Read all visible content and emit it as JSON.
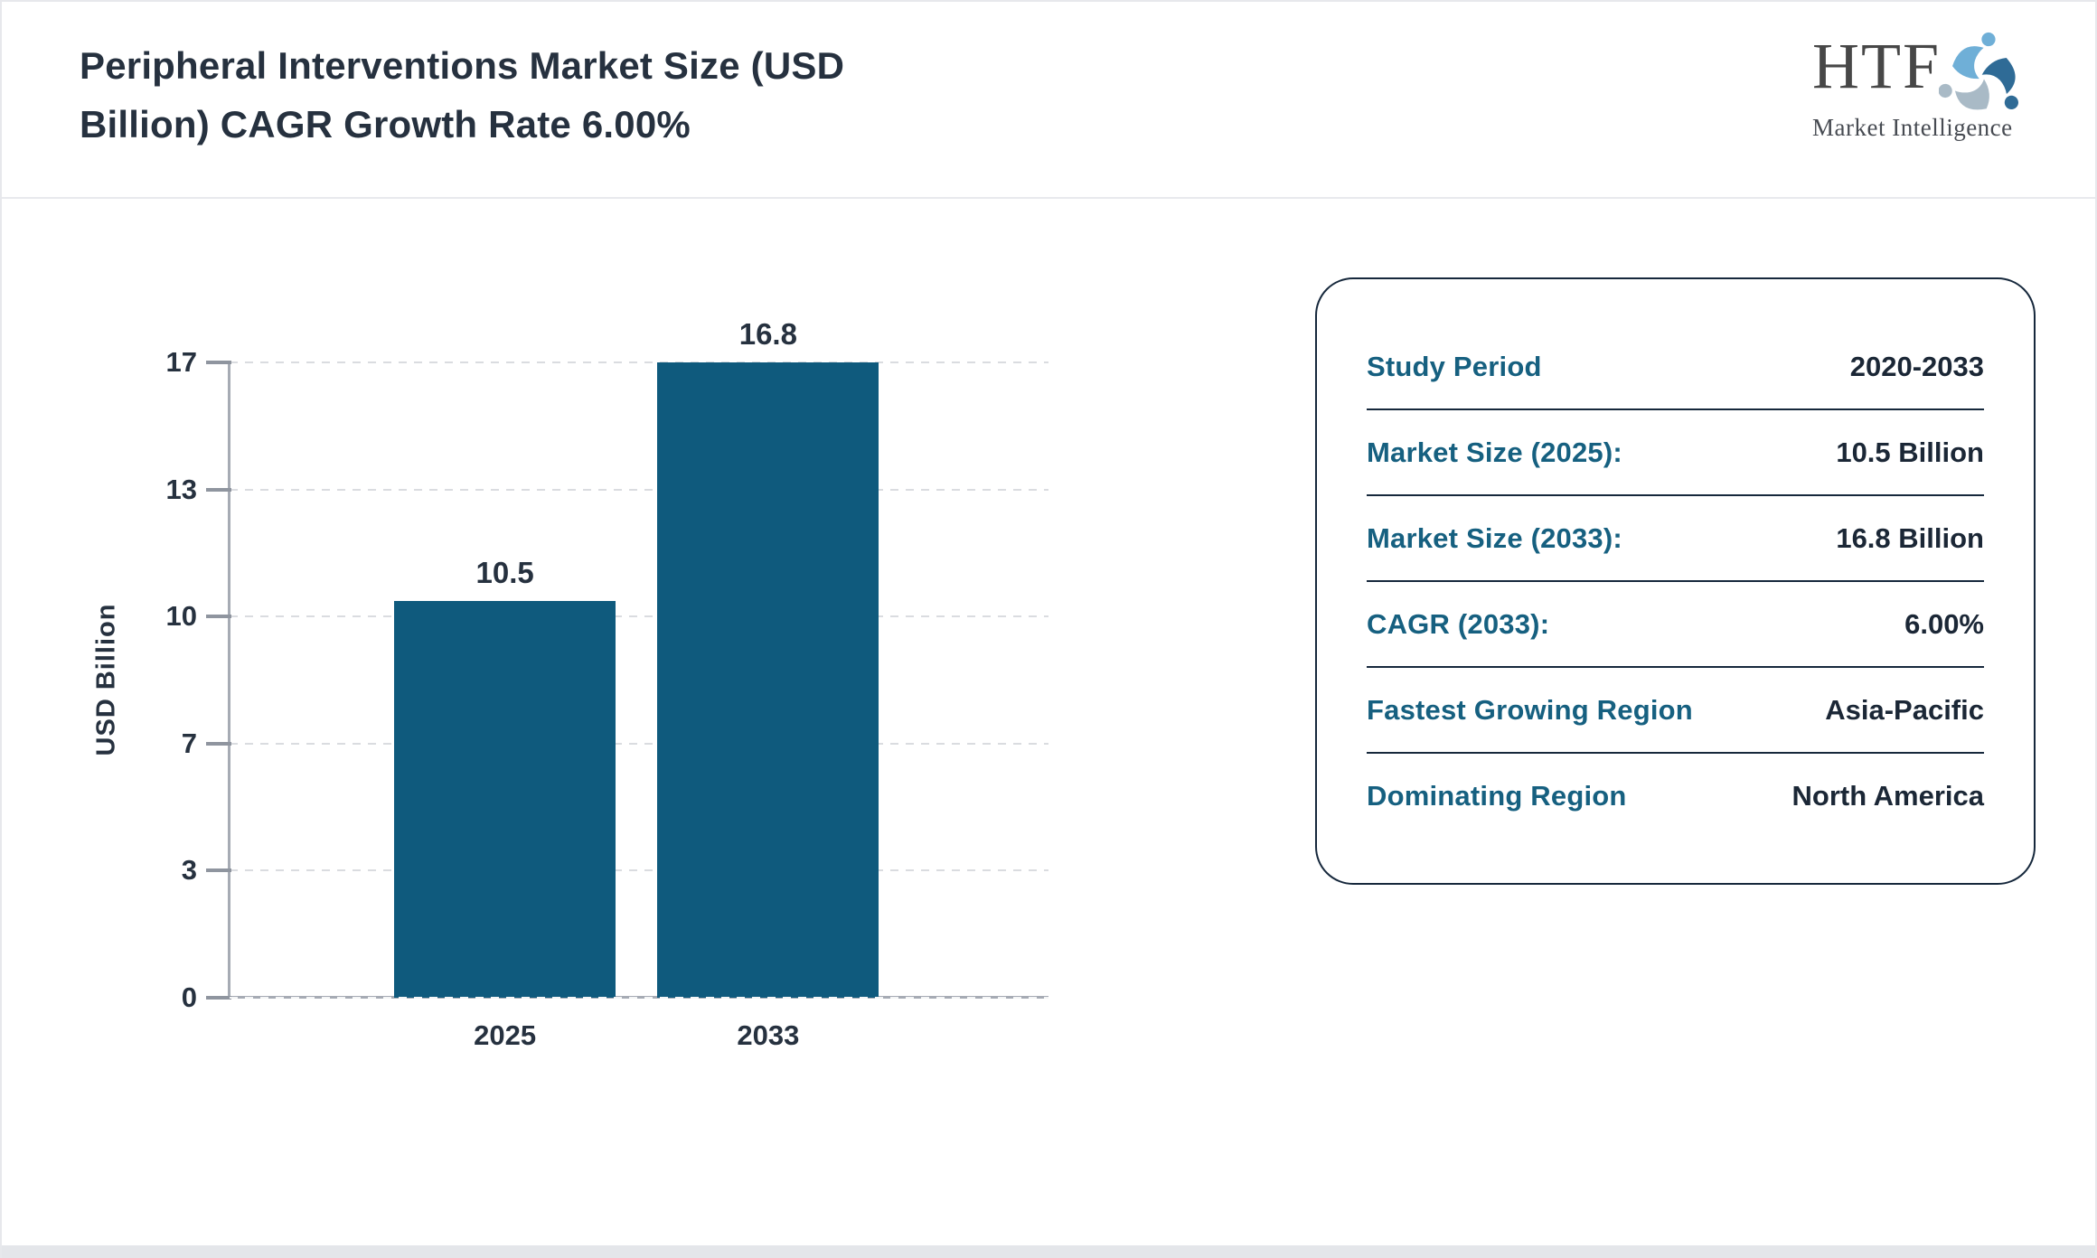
{
  "header": {
    "title_line1": "Peripheral Interventions Market Size (USD",
    "title_line2": "Billion) CAGR Growth Rate 6.00%"
  },
  "logo": {
    "monogram": "HTF",
    "subtitle": "Market Intelligence",
    "swirl_icon_colors": [
      "#6fafd7",
      "#2f6b96",
      "#a9bac6"
    ]
  },
  "chart_data": {
    "type": "bar",
    "title": "Peripheral Interventions Market Size (USD Billion) CAGR Growth Rate 6.00%",
    "categories": [
      "2025",
      "2033"
    ],
    "values": [
      10.5,
      16.8
    ],
    "value_labels": [
      "10.5",
      "16.8"
    ],
    "xlabel": "",
    "ylabel": "USD Billion",
    "ylim": [
      0,
      16.8
    ],
    "ytick_labels": [
      "0",
      "3",
      "7",
      "10",
      "13",
      "17"
    ],
    "grid": "horizontal-dashed",
    "legend": "none",
    "bar_color": "#0f5a7d"
  },
  "info_panel": {
    "rows": [
      {
        "label": "Study Period",
        "value": "2020-2033"
      },
      {
        "label": "Market Size (2025):",
        "value": "10.5 Billion"
      },
      {
        "label": "Market Size (2033):",
        "value": "16.8 Billion"
      },
      {
        "label": "CAGR (2033):",
        "value": "6.00%"
      },
      {
        "label": "Fastest Growing Region",
        "value": "Asia-Pacific"
      },
      {
        "label": "Dominating Region",
        "value": "North America"
      }
    ]
  },
  "colors": {
    "bar": "#0f5a7d",
    "accent": "#166080",
    "text_dark": "#26313f",
    "axis": "#a6abb4",
    "grid": "#dadce0",
    "panel_border": "#16283c",
    "frame": "#e7e8ec"
  }
}
